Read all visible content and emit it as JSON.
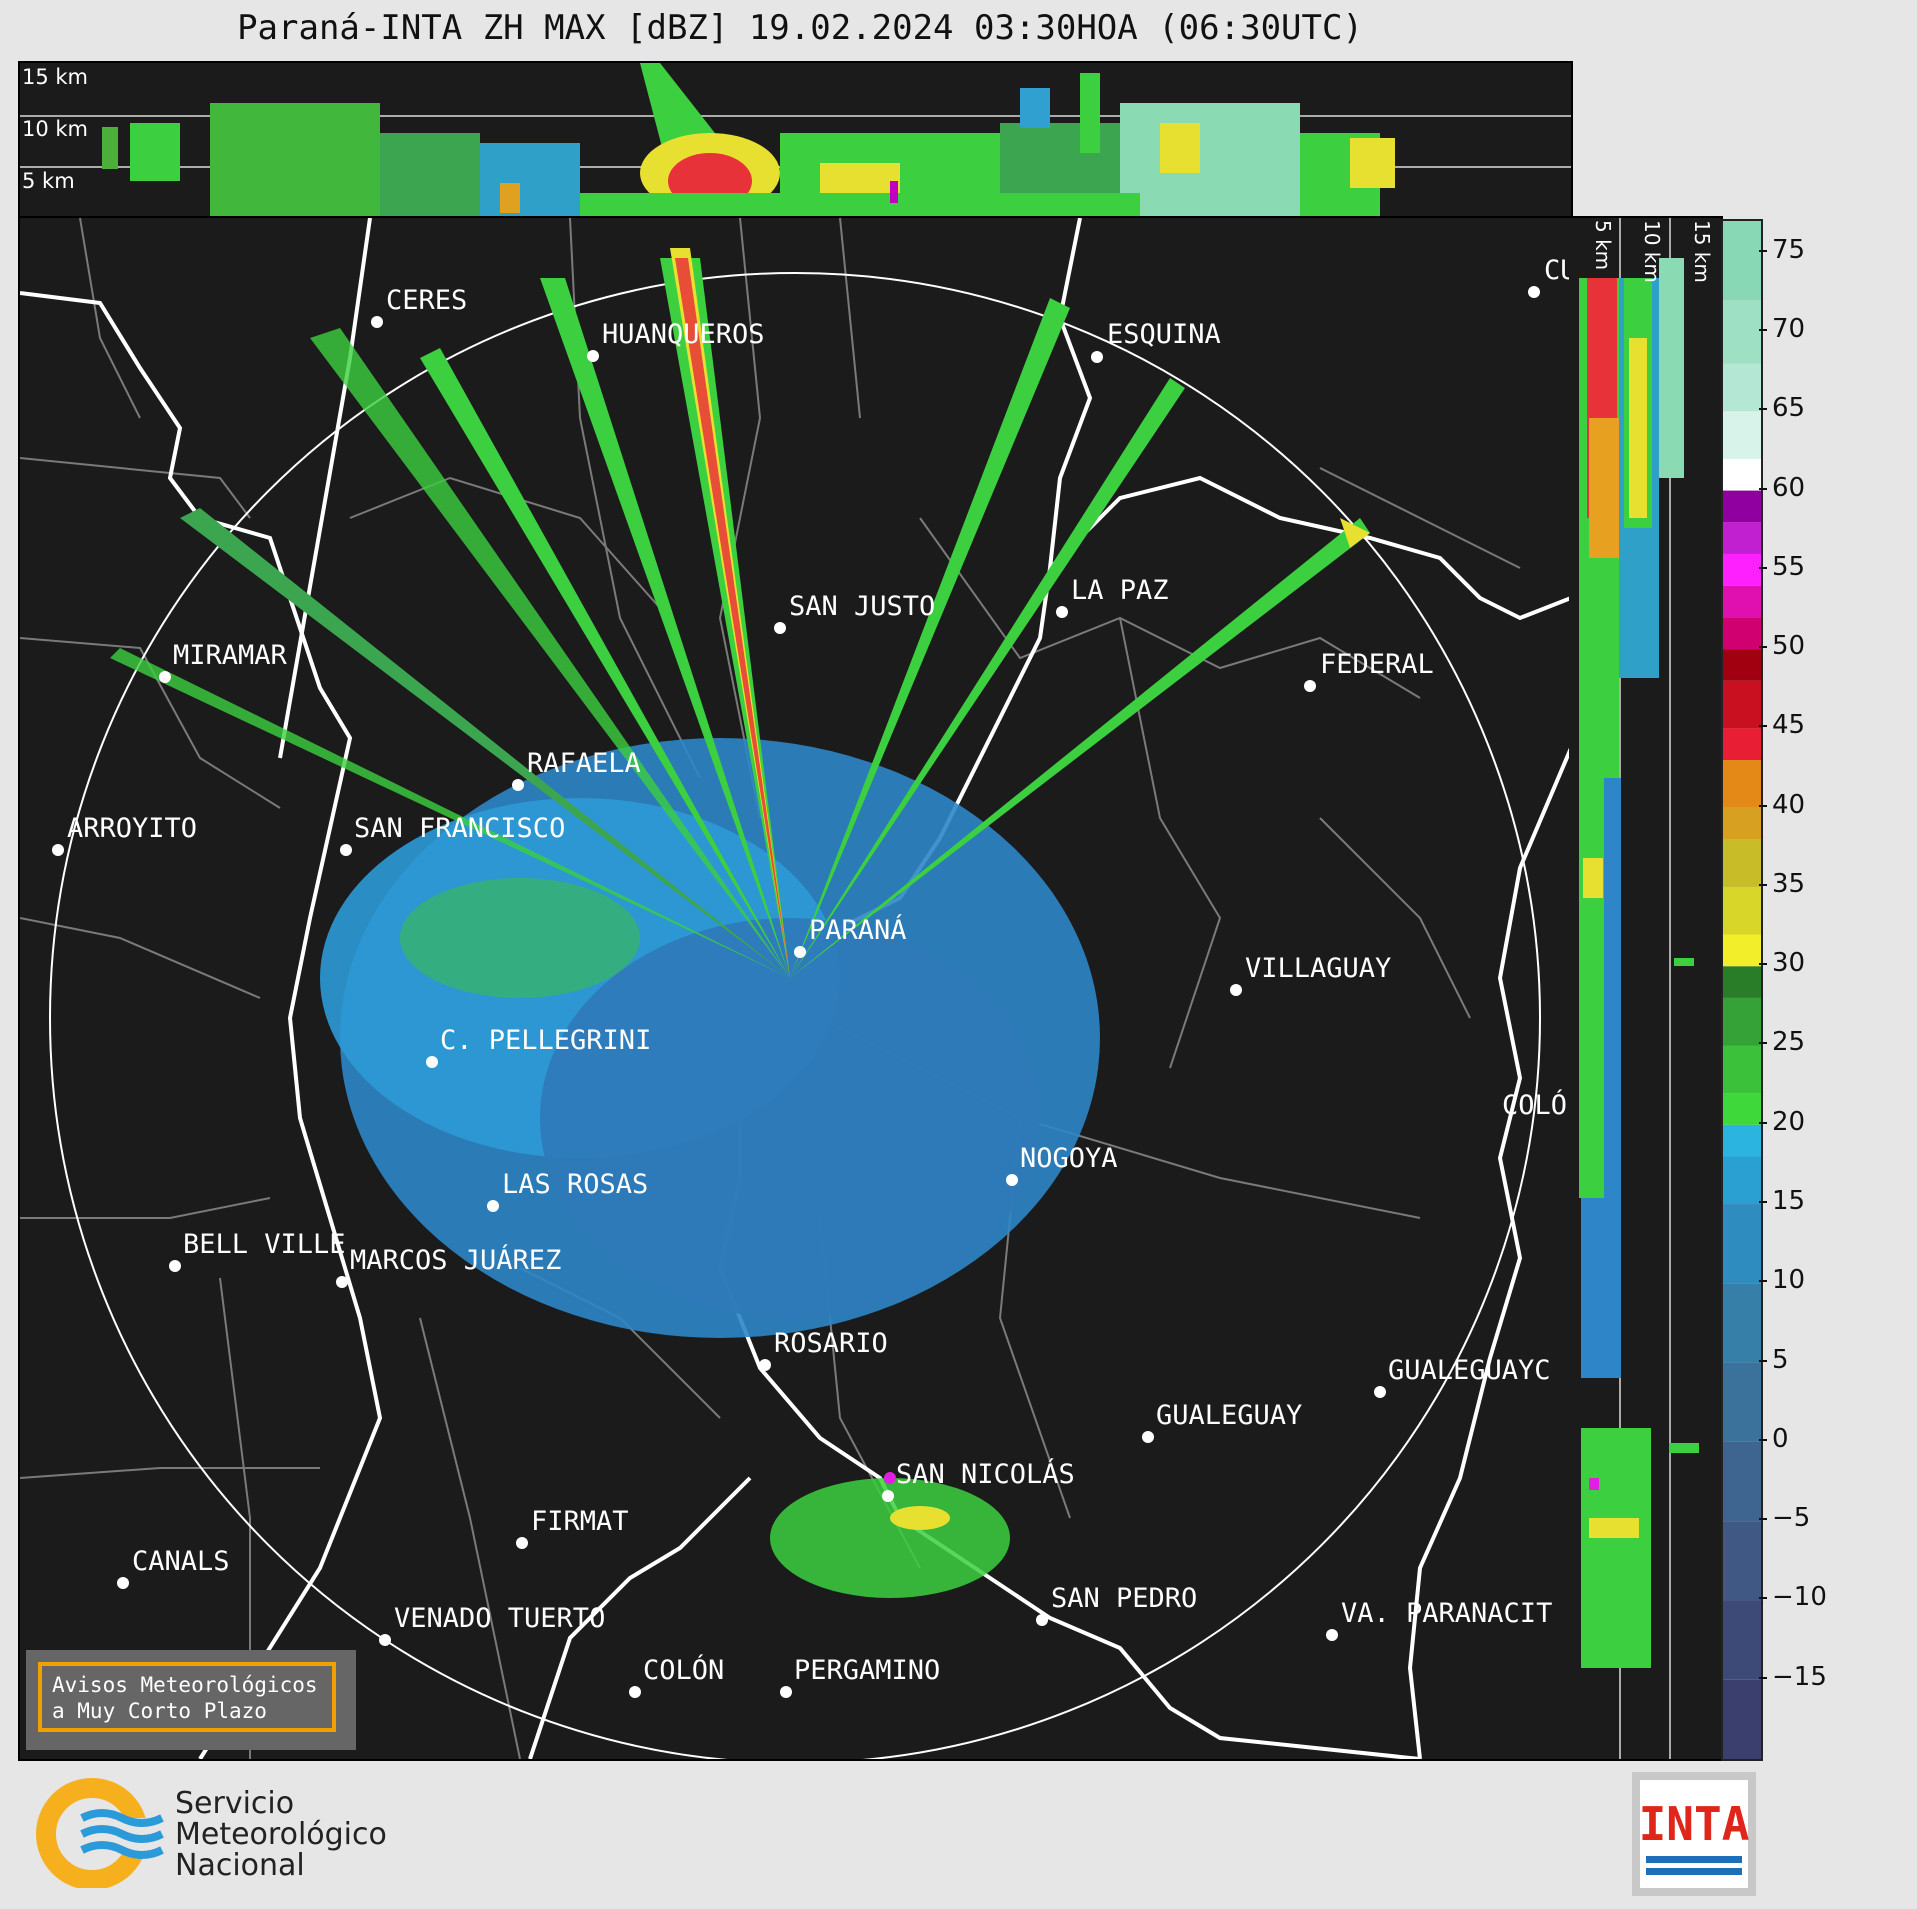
{
  "title": "Paraná-INTA ZH MAX [dBZ] 19.02.2024 03:30HOA (06:30UTC)",
  "top_panel": {
    "height_labels": [
      "15 km",
      "10 km",
      "5 km"
    ]
  },
  "side_panel": {
    "height_labels": [
      "5 km",
      "10 km",
      "15 km"
    ]
  },
  "colorbar": {
    "ticks": [
      "75",
      "70",
      "65",
      "60",
      "55",
      "50",
      "45",
      "40",
      "35",
      "30",
      "25",
      "20",
      "15",
      "10",
      "5",
      "0",
      "−5",
      "−10",
      "−15"
    ],
    "range": [
      -20,
      77
    ]
  },
  "cities": [
    {
      "name": "CERES"
    },
    {
      "name": "HUANQUEROS"
    },
    {
      "name": "ESQUINA"
    },
    {
      "name": "CU"
    },
    {
      "name": "SAN JUSTO"
    },
    {
      "name": "LA PAZ"
    },
    {
      "name": "FEDERAL"
    },
    {
      "name": "MIRAMAR"
    },
    {
      "name": "RAFAELA"
    },
    {
      "name": "ARROYITO"
    },
    {
      "name": "SAN FRANCISCO"
    },
    {
      "name": "PARANÁ"
    },
    {
      "name": "VILLAGUAY"
    },
    {
      "name": "C. PELLEGRINI"
    },
    {
      "name": "COLÓ"
    },
    {
      "name": "NOGOYA"
    },
    {
      "name": "LAS ROSAS"
    },
    {
      "name": "BELL VILLE"
    },
    {
      "name": "MARCOS JUÁREZ"
    },
    {
      "name": "ROSARIO"
    },
    {
      "name": "GUALEGUAYC"
    },
    {
      "name": "GUALEGUAY"
    },
    {
      "name": "SAN NICOLÁS"
    },
    {
      "name": "FIRMAT"
    },
    {
      "name": "CANALS"
    },
    {
      "name": "SAN PEDRO"
    },
    {
      "name": "VENADO TUERTO"
    },
    {
      "name": "VA. PARANACIT"
    },
    {
      "name": "COLÓN"
    },
    {
      "name": "PERGAMINO"
    }
  ],
  "warning_box": {
    "line1": "Avisos Meteorológicos",
    "line2": "a Muy Corto Plazo"
  },
  "smn_logo": {
    "line1": "Servicio",
    "line2": "Meteorológico",
    "line3": "Nacional"
  },
  "inta_logo": {
    "text": "INTA"
  },
  "colors": {
    "panel_bg": "#1b1b1b",
    "page_bg": "#e6e6e6",
    "accent_orange": "#f0a000",
    "inta_red": "#e0251b",
    "inta_blue": "#1e6fb8"
  }
}
